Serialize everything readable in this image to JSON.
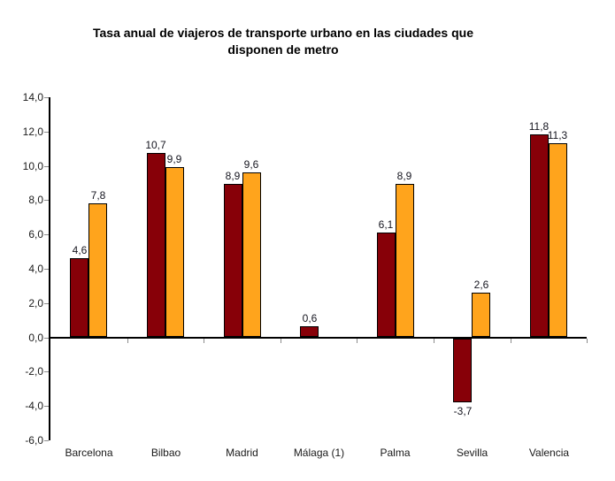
{
  "title": {
    "line1": "Tasa anual de viajeros de transporte urbano en las ciudades que",
    "line2": "disponen de metro"
  },
  "chart_data": {
    "type": "bar",
    "title": "Tasa anual de viajeros de transporte urbano en las ciudades que disponen de metro",
    "categories": [
      "Barcelona",
      "Bilbao",
      "Madrid",
      "Málaga (1)",
      "Palma",
      "Sevilla",
      "Valencia"
    ],
    "series": [
      {
        "name": "serie-rojo-oscuro",
        "color": "#870008",
        "values": [
          4.6,
          10.7,
          8.9,
          0.6,
          6.1,
          -3.7,
          11.8
        ]
      },
      {
        "name": "serie-naranja",
        "color": "#FFA41C",
        "values": [
          7.8,
          9.9,
          9.6,
          null,
          8.9,
          2.6,
          11.3
        ]
      }
    ],
    "value_labels": [
      [
        "4,6",
        "10,7",
        "8,9",
        "0,6",
        "6,1",
        "-3,7",
        "11,8"
      ],
      [
        "7,8",
        "9,9",
        "9,6",
        null,
        "8,9",
        "2,6",
        "11,3"
      ]
    ],
    "ylim": [
      -6.0,
      14.0
    ],
    "ytick_step": 2.0,
    "yticks": [
      "14,0",
      "12,0",
      "10,0",
      "8,0",
      "6,0",
      "4,0",
      "2,0",
      "0,0",
      "-2,0",
      "-4,0",
      "-6,0"
    ],
    "xlabel": "",
    "ylabel": "",
    "grid": false,
    "legend": "none",
    "bar_border_color": "#000000",
    "axis_color": "#000000",
    "tick_color": "#8c8c8c",
    "text_color": "#1a1a1a",
    "background_color": "#ffffff"
  }
}
